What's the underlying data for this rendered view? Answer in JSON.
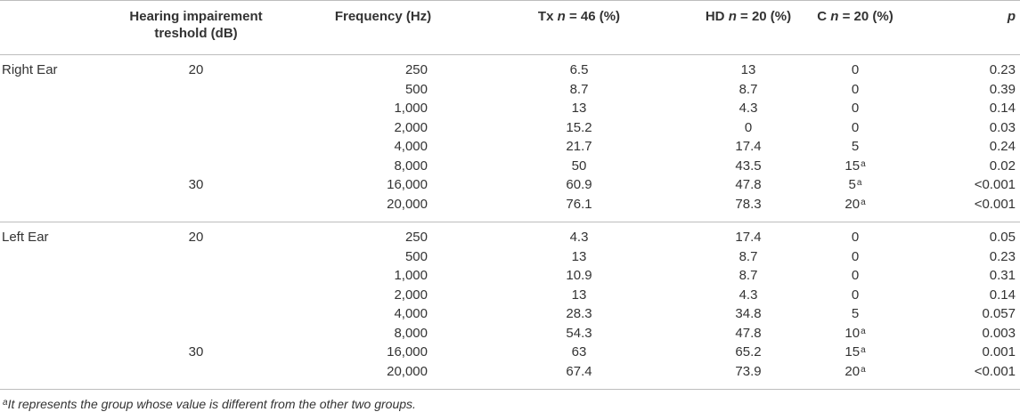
{
  "headers": {
    "threshold_line1": "Hearing impairement",
    "threshold_line2": "treshold (dB)",
    "frequency": "Frequency (Hz)",
    "tx_prefix": "Tx ",
    "tx_n": "n",
    "tx_suffix": " = 46 (%)",
    "hd_prefix": "HD ",
    "hd_n": "n",
    "hd_suffix": " = 20 (%)",
    "c_prefix": "C ",
    "c_n": "n",
    "c_suffix": " = 20 (%)",
    "p": "p"
  },
  "sections": [
    {
      "ear": "Right Ear",
      "rows": [
        {
          "threshold": "20",
          "freq": "250",
          "tx": "6.5",
          "hd": "13",
          "c": "0",
          "c_sup": "",
          "p": "0.23"
        },
        {
          "threshold": "",
          "freq": "500",
          "tx": "8.7",
          "hd": "8.7",
          "c": "0",
          "c_sup": "",
          "p": "0.39"
        },
        {
          "threshold": "",
          "freq": "1,000",
          "tx": "13",
          "hd": "4.3",
          "c": "0",
          "c_sup": "",
          "p": "0.14"
        },
        {
          "threshold": "",
          "freq": "2,000",
          "tx": "15.2",
          "hd": "0",
          "c": "0",
          "c_sup": "",
          "p": "0.03"
        },
        {
          "threshold": "",
          "freq": "4,000",
          "tx": "21.7",
          "hd": "17.4",
          "c": "5",
          "c_sup": "",
          "p": "0.24"
        },
        {
          "threshold": "",
          "freq": "8,000",
          "tx": "50",
          "hd": "43.5",
          "c": "15",
          "c_sup": "a",
          "p": "0.02"
        },
        {
          "threshold": "30",
          "freq": "16,000",
          "tx": "60.9",
          "hd": "47.8",
          "c": "5",
          "c_sup": "a",
          "p": "<0.001"
        },
        {
          "threshold": "",
          "freq": "20,000",
          "tx": "76.1",
          "hd": "78.3",
          "c": "20",
          "c_sup": "a",
          "p": "<0.001"
        }
      ]
    },
    {
      "ear": "Left Ear",
      "rows": [
        {
          "threshold": "20",
          "freq": "250",
          "tx": "4.3",
          "hd": "17.4",
          "c": "0",
          "c_sup": "",
          "p": "0.05"
        },
        {
          "threshold": "",
          "freq": "500",
          "tx": "13",
          "hd": "8.7",
          "c": "0",
          "c_sup": "",
          "p": "0.23"
        },
        {
          "threshold": "",
          "freq": "1,000",
          "tx": "10.9",
          "hd": "8.7",
          "c": "0",
          "c_sup": "",
          "p": "0.31"
        },
        {
          "threshold": "",
          "freq": "2,000",
          "tx": "13",
          "hd": "4.3",
          "c": "0",
          "c_sup": "",
          "p": "0.14"
        },
        {
          "threshold": "",
          "freq": "4,000",
          "tx": "28.3",
          "hd": "34.8",
          "c": "5",
          "c_sup": "",
          "p": "0.057"
        },
        {
          "threshold": "",
          "freq": "8,000",
          "tx": "54.3",
          "hd": "47.8",
          "c": "10",
          "c_sup": "a",
          "p": "0.003"
        },
        {
          "threshold": "30",
          "freq": "16,000",
          "tx": "63",
          "hd": "65.2",
          "c": "15",
          "c_sup": "a",
          "p": "0.001"
        },
        {
          "threshold": "",
          "freq": "20,000",
          "tx": "67.4",
          "hd": "73.9",
          "c": "20",
          "c_sup": "a",
          "p": "<0.001"
        }
      ]
    }
  ],
  "footnote": {
    "marker": "a",
    "text": "It represents the group whose value is different from the other two groups."
  },
  "colors": {
    "text": "#333333",
    "rule": "#bdbdbd"
  }
}
